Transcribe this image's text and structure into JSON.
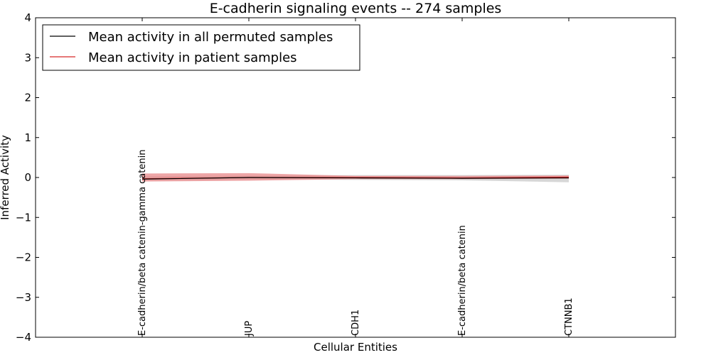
{
  "chart_data": {
    "type": "line",
    "title": "E-cadherin signaling events -- 274 samples",
    "xlabel": "Cellular Entities",
    "ylabel": "Inferred Activity",
    "ylim": [
      -4,
      4
    ],
    "yticks": [
      -4,
      -3,
      -2,
      -1,
      0,
      1,
      2,
      3,
      4
    ],
    "ytick_labels": [
      "−4",
      "−3",
      "−2",
      "−1",
      "0",
      "1",
      "2",
      "3",
      "4"
    ],
    "xlim": [
      -1,
      5
    ],
    "categories": [
      "E-cadherin/beta catenin-gamma catenin",
      "JUP",
      "CDH1",
      "E-cadherin/beta catenin",
      "CTNNB1"
    ],
    "legend_position": "top-left",
    "series": [
      {
        "name": "Mean activity in all permuted samples",
        "color": "#000000",
        "values": [
          -0.04,
          0.0,
          -0.01,
          -0.02,
          -0.01
        ],
        "band_low": [
          -0.08,
          -0.05,
          -0.06,
          -0.07,
          -0.12
        ],
        "band_high": [
          0.03,
          0.05,
          0.06,
          0.06,
          0.07
        ],
        "band_color": "#bdbdbd"
      },
      {
        "name": "Mean activity in patient samples",
        "color": "#d62728",
        "values": [
          -0.03,
          0.0,
          0.0,
          -0.01,
          0.01
        ],
        "band_low": [
          -0.1,
          -0.08,
          -0.04,
          -0.04,
          -0.03
        ],
        "band_high": [
          0.1,
          0.11,
          0.04,
          0.04,
          0.05
        ],
        "band_color": "#e8888a"
      }
    ]
  }
}
